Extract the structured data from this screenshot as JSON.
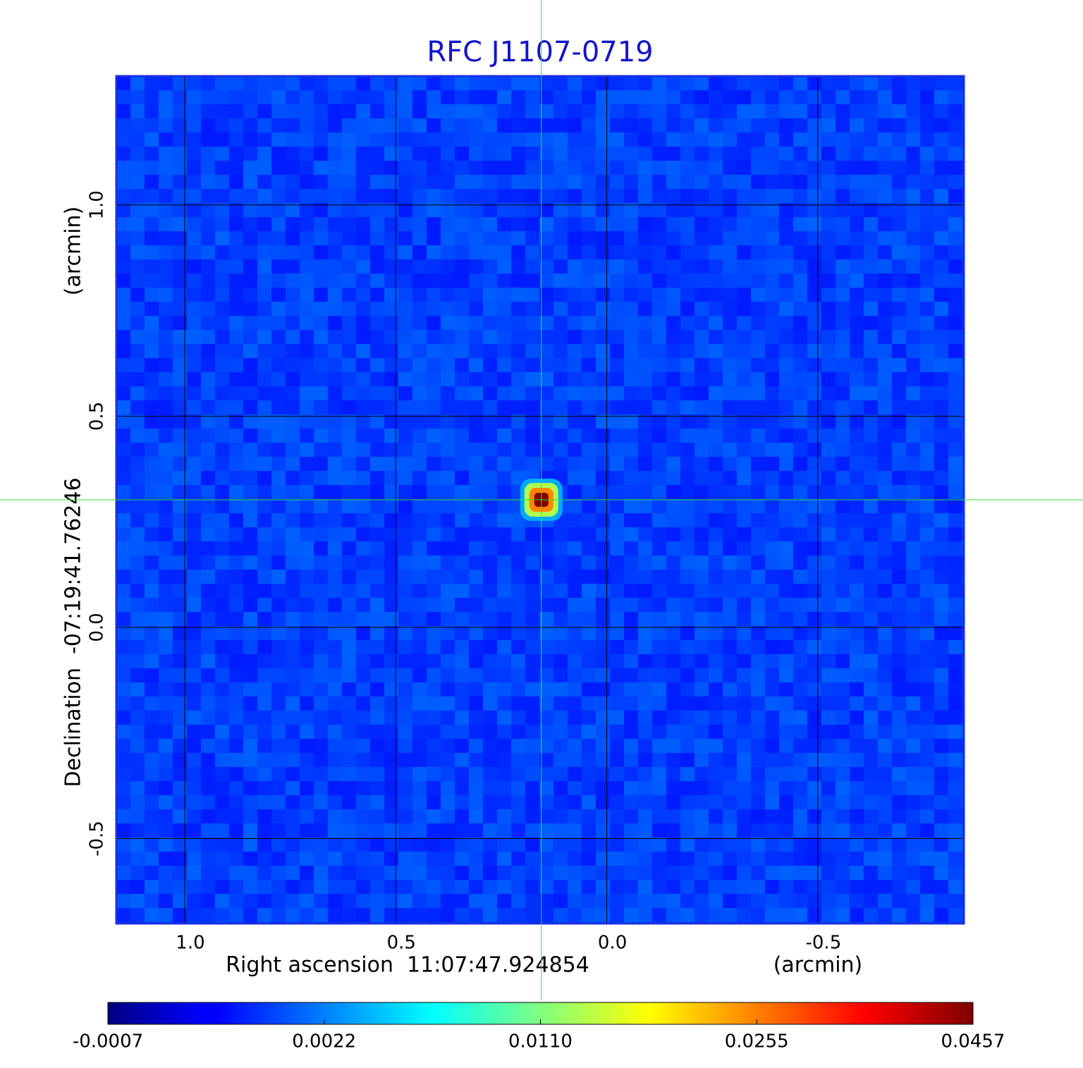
{
  "chart_data": {
    "type": "image",
    "title": "RFC J1107-0719",
    "x_label": "Right ascension  11:07:47.924854",
    "x_unit": "(arcmin)",
    "y_label": "Declination  -07:19:41.76246",
    "y_unit": "(arcmin)",
    "xlim": [
      1.162,
      -0.846
    ],
    "ylim": [
      -0.701,
      1.305
    ],
    "xticks": [
      {
        "value": 1,
        "label": "1.0"
      },
      0.5,
      {
        "value": 0,
        "label": "0.0"
      },
      -0.5
    ],
    "yticks": [
      -0.5,
      {
        "value": 0,
        "label": "0.0"
      },
      0.5,
      {
        "value": 1,
        "label": "1.0"
      }
    ],
    "grid": true,
    "source": {
      "x": 0.155,
      "y": 0.302,
      "peak": 0.0457
    },
    "colorbar": {
      "lim": [
        -0.0007,
        0.0457
      ],
      "ticks": [
        -0.0007,
        0.0022,
        {
          "value": 0.011,
          "label": "0.0110"
        },
        0.0255,
        0.0457
      ],
      "colormap": "jet"
    }
  }
}
